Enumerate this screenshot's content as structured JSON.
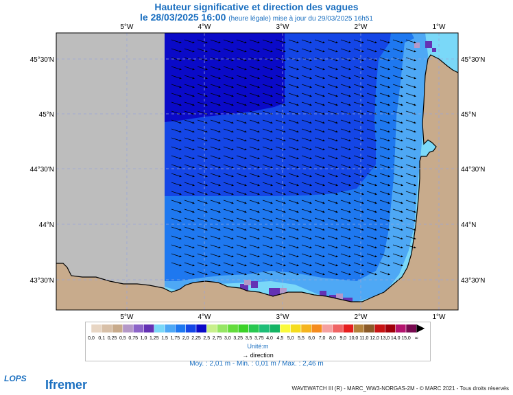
{
  "title": "Hauteur significative et direction des vagues",
  "subtitle": {
    "date": "le 28/03/2025 16:00",
    "note": "(heure légale) mise à jour du 29/03/2025 16h51"
  },
  "map": {
    "lon_labels": [
      "5°W",
      "4°W",
      "3°W",
      "2°W",
      "1°W"
    ],
    "lat_labels": [
      "45°30'N",
      "45°N",
      "44°30'N",
      "44°N",
      "43°30'N"
    ],
    "colors": {
      "land": "#c8ab8c",
      "outside_model": "#bdbdbd",
      "coastline": "#000000",
      "grid": "#9aa6d8"
    },
    "wave_height_zones": [
      {
        "range": "2,25 - 2,5",
        "color": "#0a0ac8"
      },
      {
        "range": "2,0 - 2,25",
        "color": "#1446e6"
      },
      {
        "range": "1,75 - 2,0",
        "color": "#1e78f0"
      },
      {
        "range": "1,5 - 1,75",
        "color": "#4ea8f5"
      },
      {
        "range": "1,25 - 1,5",
        "color": "#7ad8f8"
      }
    ]
  },
  "legend": {
    "items": [
      {
        "label": "0,0",
        "color": "#e8d6c4"
      },
      {
        "label": "0,1",
        "color": "#d8c0a8"
      },
      {
        "label": "0,25",
        "color": "#c8ab8c"
      },
      {
        "label": "0,5",
        "color": "#b498c8"
      },
      {
        "label": "0,75",
        "color": "#8c64c8"
      },
      {
        "label": "1,0",
        "color": "#6432b4"
      },
      {
        "label": "1,25",
        "color": "#7ad8f8"
      },
      {
        "label": "1,5",
        "color": "#4ea8f5"
      },
      {
        "label": "1,75",
        "color": "#1e78f0"
      },
      {
        "label": "2,0",
        "color": "#1446e6"
      },
      {
        "label": "2,25",
        "color": "#0a0ac8"
      },
      {
        "label": "2,5",
        "color": "#c8f08c"
      },
      {
        "label": "2,75",
        "color": "#96e664"
      },
      {
        "label": "3,0",
        "color": "#64dc3c"
      },
      {
        "label": "3,25",
        "color": "#3cd228"
      },
      {
        "label": "3,5",
        "color": "#28c850"
      },
      {
        "label": "3,75",
        "color": "#1ebe78"
      },
      {
        "label": "4,0",
        "color": "#14b464"
      },
      {
        "label": "4,5",
        "color": "#fafa3c"
      },
      {
        "label": "5,0",
        "color": "#f5dc1e"
      },
      {
        "label": "5,5",
        "color": "#f5b41e"
      },
      {
        "label": "6,0",
        "color": "#f58c1e"
      },
      {
        "label": "7,0",
        "color": "#f5a0a0"
      },
      {
        "label": "8,0",
        "color": "#f06464"
      },
      {
        "label": "9,0",
        "color": "#e61e1e"
      },
      {
        "label": "10,0",
        "color": "#b4823c"
      },
      {
        "label": "11,0",
        "color": "#8c5a28"
      },
      {
        "label": "12,0",
        "color": "#c81414"
      },
      {
        "label": "13,0",
        "color": "#a0000a"
      },
      {
        "label": "14,0",
        "color": "#b4146e"
      },
      {
        "label": "15,0",
        "color": "#780a50"
      }
    ],
    "overflow_symbol": "∞",
    "unit": "Unité:m",
    "direction_label": "direction",
    "direction_arrow": "→"
  },
  "stats": "Moy. : 2,01 m   -   Min. : 0,01 m / Max. : 2,46 m",
  "logos": {
    "lops": "LOPS",
    "ifremer": "Ifremer"
  },
  "footer": "WAVEWATCH III (R) - MARC_WW3-NORGAS-2M - © MARC 2021 - Tous droits réservés"
}
